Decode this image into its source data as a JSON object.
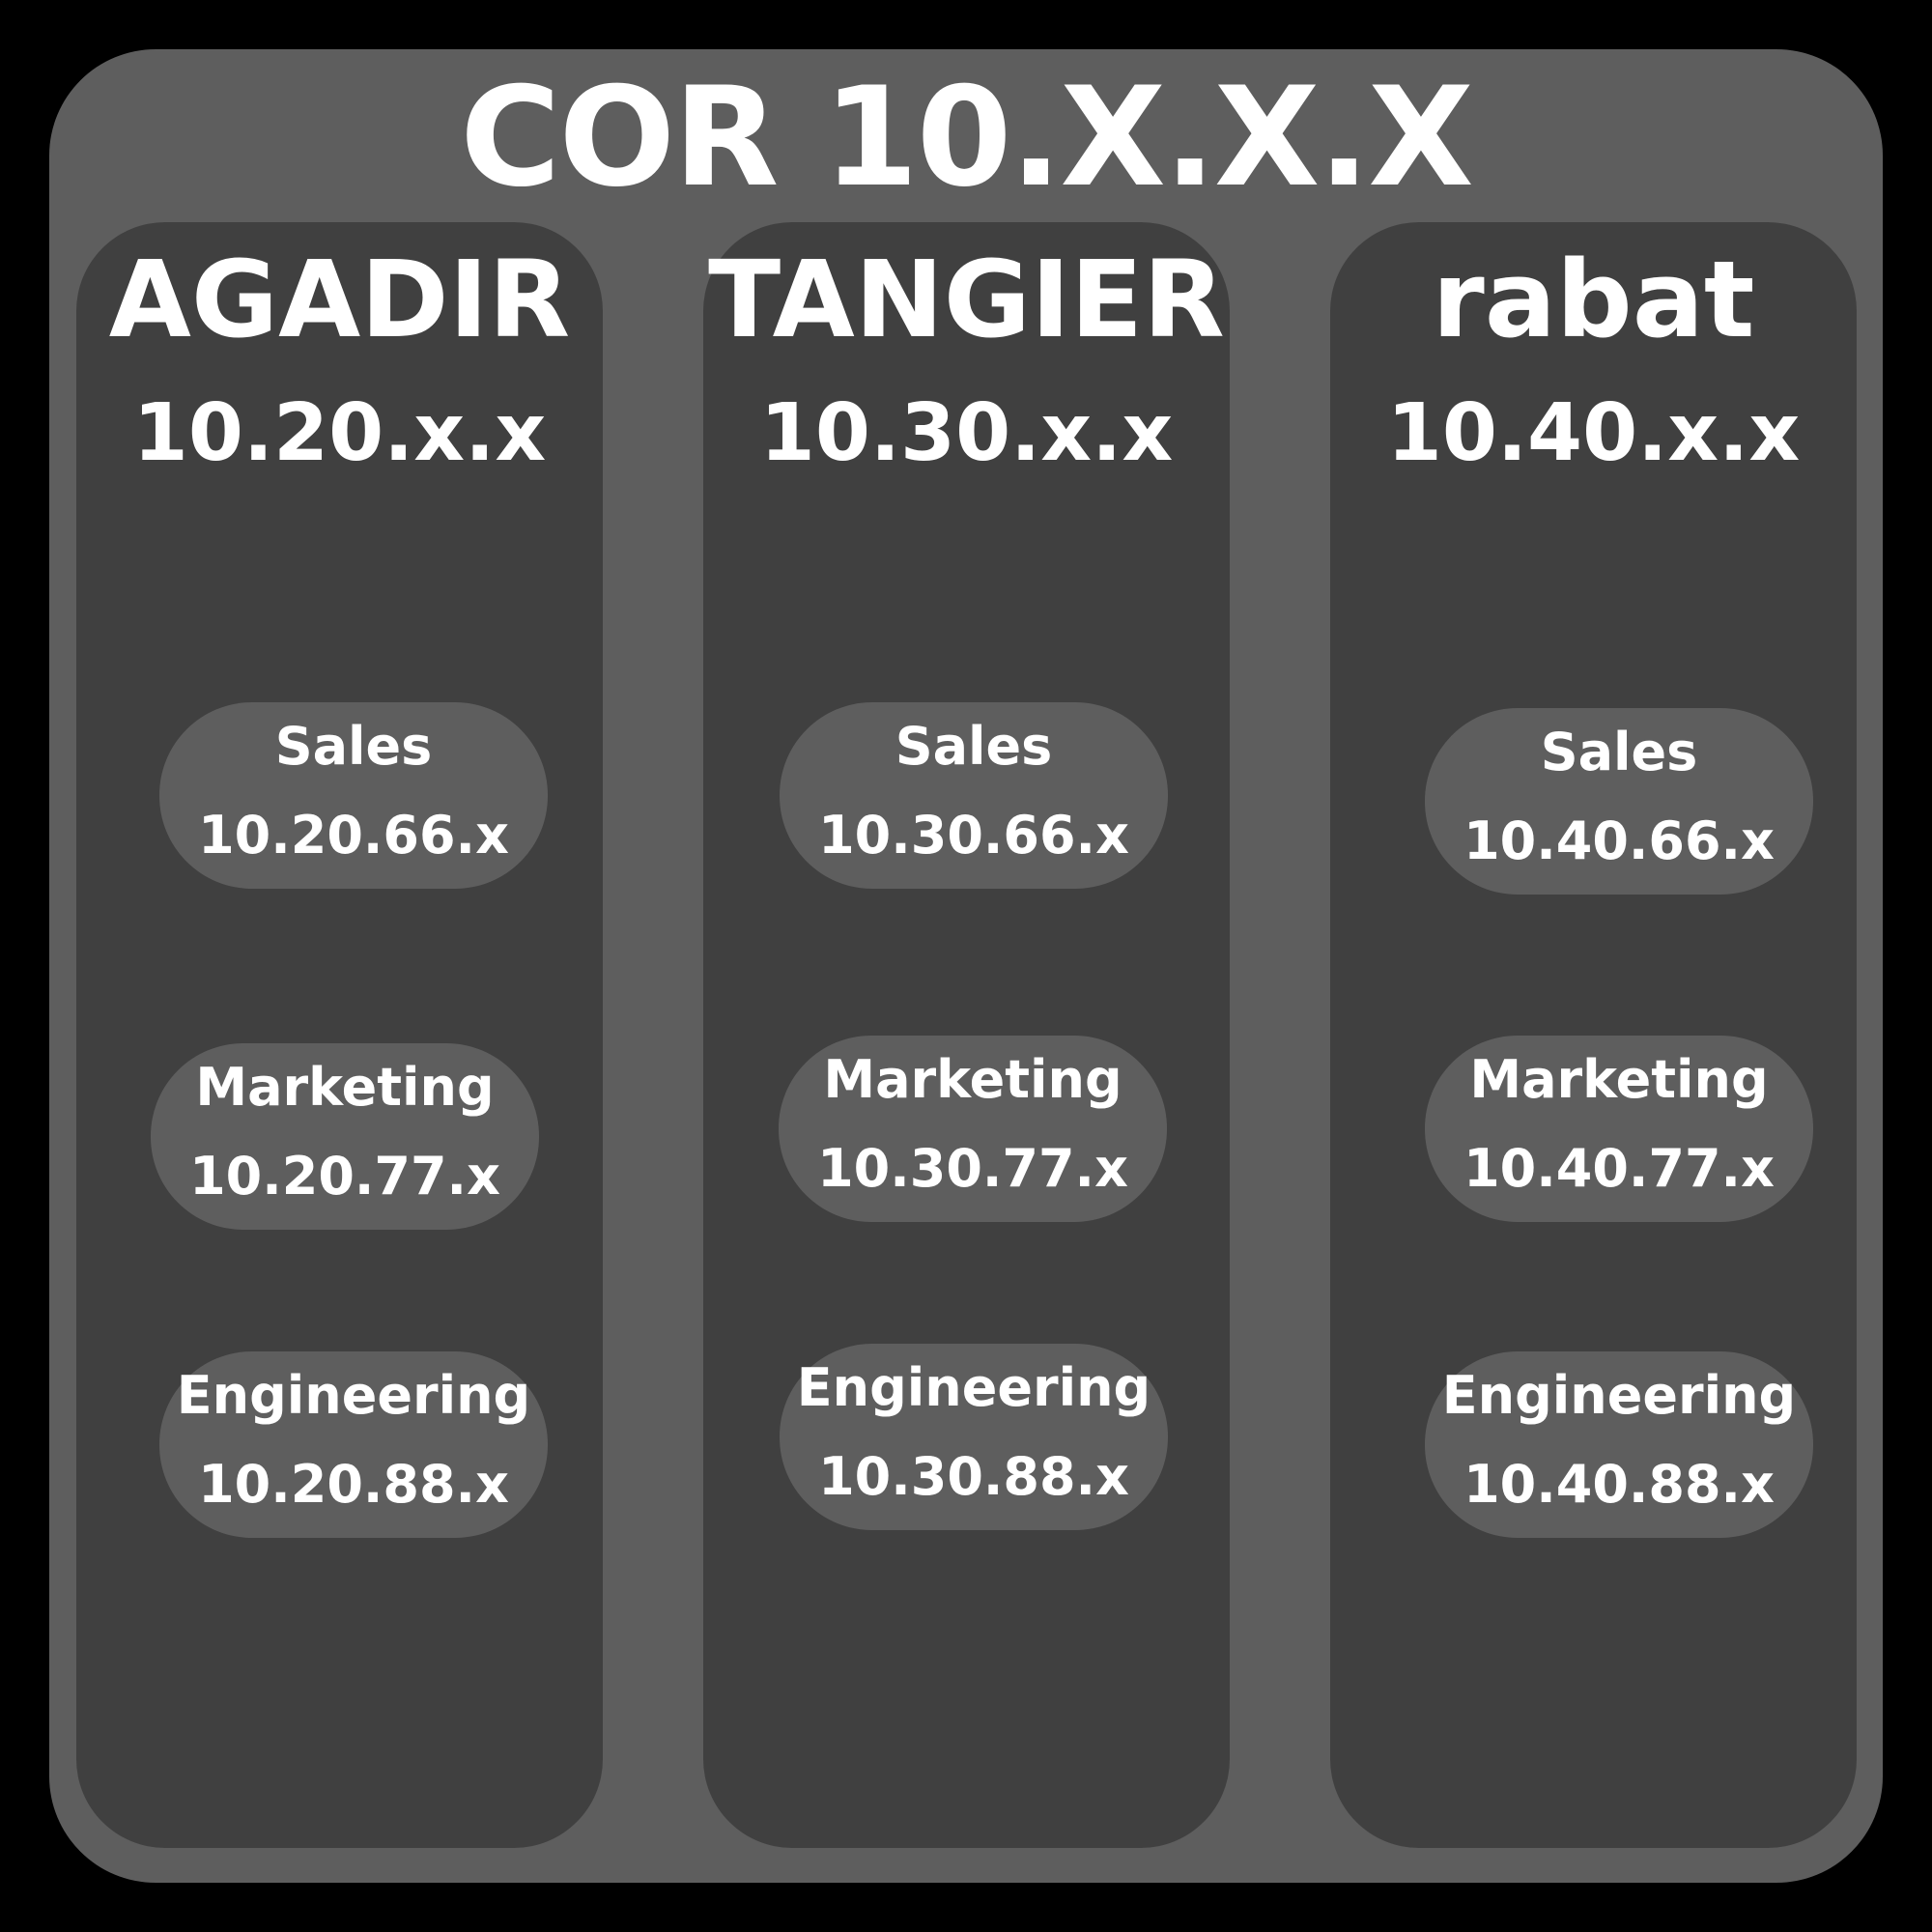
{
  "title": "COR 10.X.X.X",
  "sites": [
    {
      "name": "AGADIR",
      "network": "10.20.x.x",
      "departments": [
        {
          "name": "Sales",
          "network": "10.20.66.x"
        },
        {
          "name": "Marketing",
          "network": "10.20.77.x"
        },
        {
          "name": "Engineering",
          "network": "10.20.88.x"
        }
      ]
    },
    {
      "name": "TANGIER",
      "network": "10.30.x.x",
      "departments": [
        {
          "name": "Sales",
          "network": "10.30.66.x"
        },
        {
          "name": "Marketing",
          "network": "10.30.77.x"
        },
        {
          "name": "Engineering",
          "network": "10.30.88.x"
        }
      ]
    },
    {
      "name": "rabat",
      "network": "10.40.x.x",
      "departments": [
        {
          "name": "Sales",
          "network": "10.40.66.x"
        },
        {
          "name": "Marketing",
          "network": "10.40.77.x"
        },
        {
          "name": "Engineering",
          "network": "10.40.88.x"
        }
      ]
    }
  ],
  "colors": {
    "background": "#000000",
    "core_panel": "#5e5e5e",
    "site_panel": "#404040",
    "department_pill": "#5e5e5e",
    "text": "#ffffff"
  }
}
